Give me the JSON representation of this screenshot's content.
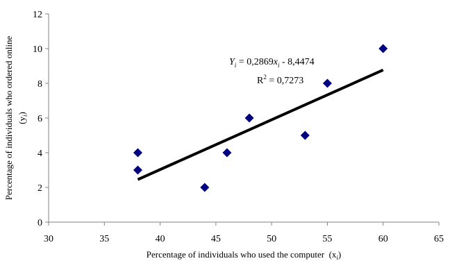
{
  "chart_data": {
    "type": "scatter",
    "title": "",
    "xlabel": "Percentage of individuals who used the computer",
    "xlabel_var": "(x",
    "xlabel_sub": "i",
    "xlabel_close": ")",
    "ylabel": "Percentage of individuals who ordered online",
    "ylabel_var": "(y",
    "ylabel_sub": "i",
    "ylabel_close": ")",
    "xlim": [
      30,
      65
    ],
    "ylim": [
      0,
      12
    ],
    "xticks": [
      "30",
      "35",
      "40",
      "45",
      "50",
      "55",
      "60",
      "65"
    ],
    "yticks": [
      "0",
      "2",
      "4",
      "6",
      "8",
      "10",
      "12"
    ],
    "grid": false,
    "points": [
      {
        "x": 38,
        "y": 4
      },
      {
        "x": 38,
        "y": 3
      },
      {
        "x": 44,
        "y": 2
      },
      {
        "x": 46,
        "y": 4
      },
      {
        "x": 48,
        "y": 6
      },
      {
        "x": 53,
        "y": 5
      },
      {
        "x": 55,
        "y": 8
      },
      {
        "x": 60,
        "y": 10
      }
    ],
    "trendline": {
      "slope": 0.2869,
      "intercept": -8.4474,
      "x_range": [
        38,
        60
      ],
      "eq_y": "Y",
      "eq_y_sub": "i",
      "eq_mid": " = 0,2869",
      "eq_x": "x",
      "eq_x_sub": "i",
      "eq_tail": " - 8,4474",
      "r2_label": "R",
      "r2_sup": "2",
      "r2_value": " = 0,7273"
    },
    "colors": {
      "marker": "#000080",
      "trendline": "#000000",
      "axis": "#808080"
    }
  }
}
